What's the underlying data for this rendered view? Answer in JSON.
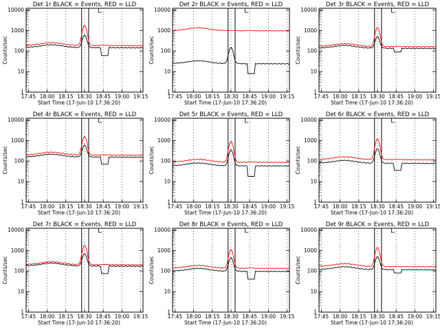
{
  "colors": {
    "events": "#000000",
    "lld": "#ff0000"
  },
  "chart_data": [
    {
      "type": "line",
      "title": "Det 1r BLACK = Events, RED = LLD",
      "xlabel": "Start Time (17-Jun-10 17:36:20)",
      "ylabel": "Counts/sec",
      "x_ticks": [
        "17:45",
        "18:00",
        "18:15",
        "18:30",
        "18:45",
        "19:00",
        "19:15"
      ],
      "y_ticks": [
        "1",
        "10",
        "100",
        "1000",
        "10000"
      ],
      "y_scale": "log",
      "ylim": [
        1,
        12000
      ],
      "series": [
        {
          "name": "Events",
          "color": "#000000",
          "base": 150,
          "peak": 600,
          "dip": 60
        },
        {
          "name": "LLD",
          "color": "#ff0000",
          "base": 190,
          "peak": 1800,
          "dip": 190
        }
      ]
    },
    {
      "type": "line",
      "title": "Det 2r BLACK = Events, RED = LLD",
      "xlabel": "Start Time (17-Jun-10 17:36:20)",
      "ylabel": "Counts/sec",
      "x_ticks": [
        "17:45",
        "18:00",
        "18:15",
        "18:30",
        "18:45",
        "19:00",
        "19:15"
      ],
      "y_ticks": [
        "1",
        "10",
        "100",
        "1000",
        "10000"
      ],
      "y_scale": "log",
      "ylim": [
        1,
        12000
      ],
      "series": [
        {
          "name": "Events",
          "color": "#000000",
          "base": 25,
          "peak": 150,
          "dip": 8
        },
        {
          "name": "LLD",
          "color": "#ff0000",
          "base": 1000,
          "peak": 1000,
          "dip": 1000
        }
      ]
    },
    {
      "type": "line",
      "title": "Det 3r BLACK = Events, RED = LLD",
      "xlabel": "Start Time (17-Jun-10 17:36:20)",
      "ylabel": "Counts/sec",
      "x_ticks": [
        "17:45",
        "18:00",
        "18:15",
        "18:30",
        "18:45",
        "19:00",
        "19:15"
      ],
      "y_ticks": [
        "1",
        "10",
        "100",
        "1000",
        "10000"
      ],
      "y_scale": "log",
      "ylim": [
        1,
        12000
      ],
      "series": [
        {
          "name": "Events",
          "color": "#000000",
          "base": 140,
          "peak": 500,
          "dip": 90
        },
        {
          "name": "LLD",
          "color": "#ff0000",
          "base": 170,
          "peak": 1400,
          "dip": 170
        }
      ]
    },
    {
      "type": "line",
      "title": "Det 4r BLACK = Events, RED = LLD",
      "xlabel": "Start Time (17-Jun-10 17:36:20)",
      "ylabel": "Counts/sec",
      "x_ticks": [
        "17:45",
        "18:00",
        "18:15",
        "18:30",
        "18:45",
        "19:00",
        "19:15"
      ],
      "y_ticks": [
        "1",
        "10",
        "100",
        "1000",
        "10000"
      ],
      "y_scale": "log",
      "ylim": [
        1,
        12000
      ],
      "series": [
        {
          "name": "Events",
          "color": "#000000",
          "base": 160,
          "peak": 600,
          "dip": 70
        },
        {
          "name": "LLD",
          "color": "#ff0000",
          "base": 200,
          "peak": 1600,
          "dip": 200
        }
      ]
    },
    {
      "type": "line",
      "title": "Det 5r BLACK = Events, RED = LLD",
      "xlabel": "Start Time (17-Jun-10 17:36:20)",
      "ylabel": "Counts/sec",
      "x_ticks": [
        "17:45",
        "18:00",
        "18:15",
        "18:30",
        "18:45",
        "19:00",
        "19:15"
      ],
      "y_ticks": [
        "1",
        "10",
        "100",
        "1000",
        "10000"
      ],
      "y_scale": "log",
      "ylim": [
        1,
        12000
      ],
      "series": [
        {
          "name": "Events",
          "color": "#000000",
          "base": 60,
          "peak": 350,
          "dip": 18
        },
        {
          "name": "LLD",
          "color": "#ff0000",
          "base": 90,
          "peak": 900,
          "dip": 90
        }
      ]
    },
    {
      "type": "line",
      "title": "Det 6r BLACK = Events, RED = LLD",
      "xlabel": "Start Time (17-Jun-10 17:36:20)",
      "ylabel": "Counts/sec",
      "x_ticks": [
        "17:45",
        "18:00",
        "18:15",
        "18:30",
        "18:45",
        "19:00",
        "19:15"
      ],
      "y_ticks": [
        "1",
        "10",
        "100",
        "1000",
        "10000"
      ],
      "y_scale": "log",
      "ylim": [
        1,
        12000
      ],
      "series": [
        {
          "name": "Events",
          "color": "#000000",
          "base": 80,
          "peak": 400,
          "dip": 35
        },
        {
          "name": "LLD",
          "color": "#ff0000",
          "base": 120,
          "peak": 1200,
          "dip": 120
        }
      ]
    },
    {
      "type": "line",
      "title": "Det 7r BLACK = Events, RED = LLD",
      "xlabel": "Start Time (17-Jun-10 17:36:20)",
      "ylabel": "Counts/sec",
      "x_ticks": [
        "17:45",
        "18:00",
        "18:15",
        "18:30",
        "18:45",
        "19:00",
        "19:15"
      ],
      "y_ticks": [
        "1",
        "10",
        "100",
        "1000",
        "10000"
      ],
      "y_scale": "log",
      "ylim": [
        1,
        12000
      ],
      "series": [
        {
          "name": "Events",
          "color": "#000000",
          "base": 180,
          "peak": 700,
          "dip": 75
        },
        {
          "name": "LLD",
          "color": "#ff0000",
          "base": 210,
          "peak": 1800,
          "dip": 210
        }
      ]
    },
    {
      "type": "line",
      "title": "Det 8r BLACK = Events, RED = LLD",
      "xlabel": "Start Time (17-Jun-10 17:36:20)",
      "ylabel": "Counts/sec",
      "x_ticks": [
        "17:45",
        "18:00",
        "18:15",
        "18:30",
        "18:45",
        "19:00",
        "19:15"
      ],
      "y_ticks": [
        "1",
        "10",
        "100",
        "1000",
        "10000"
      ],
      "y_scale": "log",
      "ylim": [
        1,
        12000
      ],
      "series": [
        {
          "name": "Events",
          "color": "#000000",
          "base": 100,
          "peak": 450,
          "dip": 40
        },
        {
          "name": "LLD",
          "color": "#ff0000",
          "base": 140,
          "peak": 1100,
          "dip": 140
        }
      ]
    },
    {
      "type": "line",
      "title": "Det 9r BLACK = Events, RED = LLD",
      "xlabel": "Start Time (17-Jun-10 17:36:20)",
      "ylabel": "Counts/sec",
      "x_ticks": [
        "17:45",
        "18:00",
        "18:15",
        "18:30",
        "18:45",
        "19:00",
        "19:15"
      ],
      "y_ticks": [
        "1",
        "10",
        "100",
        "1000",
        "10000"
      ],
      "y_scale": "log",
      "ylim": [
        1,
        12000
      ],
      "series": [
        {
          "name": "Events",
          "color": "#000000",
          "base": 120,
          "peak": 500,
          "dip": 80
        },
        {
          "name": "LLD",
          "color": "#ff0000",
          "base": 170,
          "peak": 1400,
          "dip": 170
        }
      ]
    }
  ]
}
